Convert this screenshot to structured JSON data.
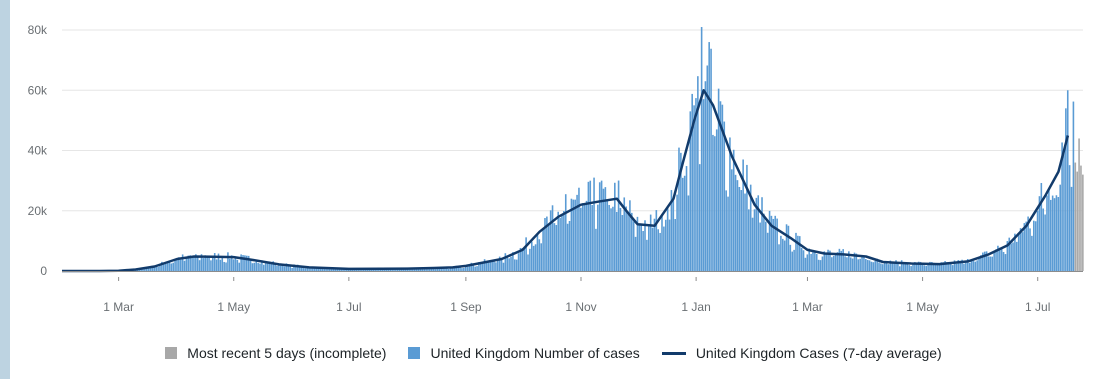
{
  "colors": {
    "incomplete": "#a8a8a8",
    "cases": "#5a9bd4",
    "average": "#123b6b",
    "grid": "#e6e6e6",
    "axis": "#8c8c8c"
  },
  "chart_data": {
    "type": "bar",
    "title": "",
    "xlabel": "",
    "ylabel": "",
    "ylim": [
      0,
      82000
    ],
    "y_ticks": [
      {
        "value": 0,
        "label": "0"
      },
      {
        "value": 20000,
        "label": "20k"
      },
      {
        "value": 40000,
        "label": "40k"
      },
      {
        "value": 60000,
        "label": "60k"
      },
      {
        "value": 80000,
        "label": "80k"
      }
    ],
    "x_range": [
      "2020-01-31",
      "2021-07-25"
    ],
    "x_ticks": [
      {
        "date": "2020-03-01",
        "label": "1 Mar"
      },
      {
        "date": "2020-05-01",
        "label": "1 May"
      },
      {
        "date": "2020-07-01",
        "label": "1 Jul"
      },
      {
        "date": "2020-09-01",
        "label": "1 Sep"
      },
      {
        "date": "2020-11-01",
        "label": "1 Nov"
      },
      {
        "date": "2021-01-01",
        "label": "1 Jan"
      },
      {
        "date": "2021-03-01",
        "label": "1 Mar"
      },
      {
        "date": "2021-05-01",
        "label": "1 May"
      },
      {
        "date": "2021-07-01",
        "label": "1 Jul"
      }
    ],
    "series": [
      {
        "name": "United Kingdom Cases (7-day average)",
        "kind": "line",
        "points": [
          [
            "2020-01-31",
            0
          ],
          [
            "2020-02-20",
            0
          ],
          [
            "2020-03-01",
            100
          ],
          [
            "2020-03-10",
            500
          ],
          [
            "2020-03-20",
            1500
          ],
          [
            "2020-04-01",
            4000
          ],
          [
            "2020-04-10",
            4800
          ],
          [
            "2020-04-20",
            4700
          ],
          [
            "2020-05-01",
            4600
          ],
          [
            "2020-05-10",
            3800
          ],
          [
            "2020-05-25",
            2200
          ],
          [
            "2020-06-10",
            1200
          ],
          [
            "2020-07-01",
            700
          ],
          [
            "2020-08-01",
            800
          ],
          [
            "2020-08-15",
            1000
          ],
          [
            "2020-08-25",
            1200
          ],
          [
            "2020-09-01",
            1700
          ],
          [
            "2020-09-10",
            2800
          ],
          [
            "2020-09-20",
            4000
          ],
          [
            "2020-10-01",
            7000
          ],
          [
            "2020-10-10",
            13000
          ],
          [
            "2020-10-20",
            18000
          ],
          [
            "2020-11-01",
            22000
          ],
          [
            "2020-11-10",
            23000
          ],
          [
            "2020-11-20",
            24000
          ],
          [
            "2020-11-25",
            20000
          ],
          [
            "2020-12-01",
            15500
          ],
          [
            "2020-12-10",
            15000
          ],
          [
            "2020-12-20",
            24000
          ],
          [
            "2020-12-25",
            36000
          ],
          [
            "2020-12-31",
            50000
          ],
          [
            "2021-01-05",
            60000
          ],
          [
            "2021-01-10",
            55000
          ],
          [
            "2021-01-20",
            38000
          ],
          [
            "2021-02-01",
            22000
          ],
          [
            "2021-02-10",
            15000
          ],
          [
            "2021-02-20",
            11000
          ],
          [
            "2021-03-01",
            7000
          ],
          [
            "2021-03-10",
            5800
          ],
          [
            "2021-03-20",
            5500
          ],
          [
            "2021-04-01",
            4800
          ],
          [
            "2021-04-10",
            3000
          ],
          [
            "2021-04-25",
            2500
          ],
          [
            "2021-05-10",
            2300
          ],
          [
            "2021-05-25",
            3200
          ],
          [
            "2021-06-05",
            5500
          ],
          [
            "2021-06-15",
            8500
          ],
          [
            "2021-06-25",
            15000
          ],
          [
            "2021-07-05",
            25000
          ],
          [
            "2021-07-12",
            33000
          ],
          [
            "2021-07-17",
            45000
          ]
        ]
      },
      {
        "name": "United Kingdom Number of cases",
        "kind": "bar",
        "daily_jitter": 0.28,
        "spikes": [
          [
            "2020-10-24",
            25500
          ],
          [
            "2020-11-08",
            31000
          ],
          [
            "2020-11-12",
            30000
          ],
          [
            "2020-12-29",
            53000
          ],
          [
            "2020-12-31",
            55000
          ],
          [
            "2021-01-04",
            81000
          ],
          [
            "2021-01-06",
            63000
          ],
          [
            "2021-01-08",
            76000
          ],
          [
            "2021-01-12",
            47000
          ],
          [
            "2021-07-16",
            54000
          ],
          [
            "2021-07-17",
            60000
          ]
        ]
      },
      {
        "name": "Most recent 5 days (incomplete)",
        "kind": "bar",
        "values": [
          [
            "2021-07-21",
            36000
          ],
          [
            "2021-07-22",
            33000
          ],
          [
            "2021-07-23",
            44000
          ],
          [
            "2021-07-24",
            35000
          ],
          [
            "2021-07-25",
            32000
          ]
        ]
      }
    ]
  }
}
